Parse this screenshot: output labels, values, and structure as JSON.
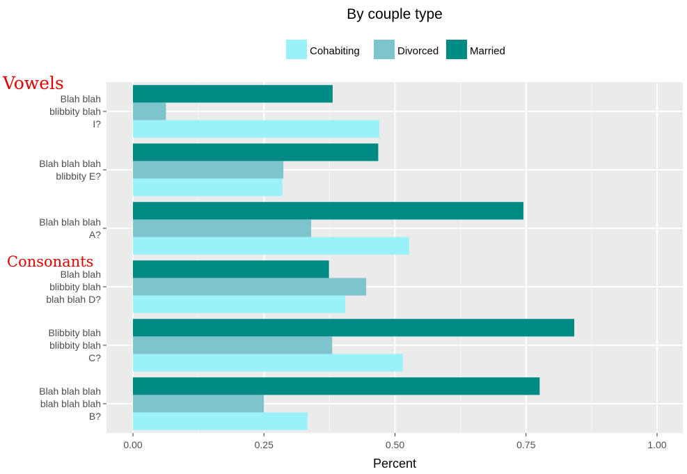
{
  "chart_data": {
    "type": "bar",
    "orientation": "horizontal",
    "title": "By couple type",
    "xlabel": "Percent",
    "ylabel": "",
    "xlim": [
      0,
      1
    ],
    "xticks": [
      "0.00",
      "0.25",
      "0.50",
      "0.75",
      "1.00"
    ],
    "xtick_values": [
      0,
      0.25,
      0.5,
      0.75,
      1.0
    ],
    "grid": true,
    "legend_position": "top",
    "categories": [
      [
        "Blah blah",
        "blibbity blah",
        "I?"
      ],
      [
        "Blah blah blah",
        "blibbity E?"
      ],
      [
        "Blah blah blah",
        "A?"
      ],
      [
        "Blah blah",
        "blibbity blah",
        "blah blah D?"
      ],
      [
        "Blibbity blah",
        "blibbity blah",
        "C?"
      ],
      [
        "Blah blah blah",
        "blah blah blah",
        "B?"
      ]
    ],
    "series": [
      {
        "name": "Cohabiting",
        "color": "#9af1f9",
        "values": [
          0.47,
          0.285,
          0.527,
          0.405,
          0.515,
          0.333
        ]
      },
      {
        "name": "Divorced",
        "color": "#7ec4cd",
        "values": [
          0.063,
          0.287,
          0.34,
          0.445,
          0.38,
          0.25
        ]
      },
      {
        "name": "Married",
        "color": "#008a86",
        "values": [
          0.381,
          0.468,
          0.745,
          0.374,
          0.842,
          0.776
        ]
      }
    ],
    "annotations": [
      "Vowels",
      "Consonants"
    ],
    "annotation_color": "#e00000"
  }
}
